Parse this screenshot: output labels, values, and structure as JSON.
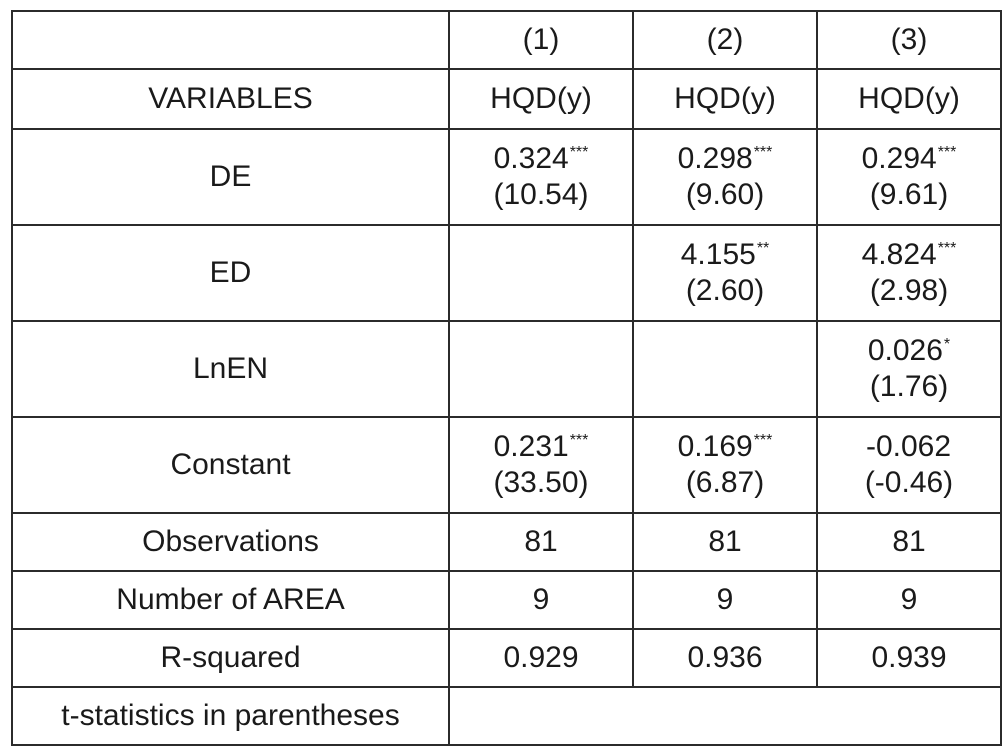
{
  "header": {
    "corner": "",
    "models": [
      "(1)",
      "(2)",
      "(3)"
    ]
  },
  "dep_row": {
    "label": "VARIABLES",
    "values": [
      "HQD(y)",
      "HQD(y)",
      "HQD(y)"
    ]
  },
  "rows": [
    {
      "label": "DE",
      "cells": [
        {
          "coef": "0.324",
          "stars": "***",
          "t": "(10.54)"
        },
        {
          "coef": "0.298",
          "stars": "***",
          "t": "(9.60)"
        },
        {
          "coef": "0.294",
          "stars": "***",
          "t": "(9.61)"
        }
      ]
    },
    {
      "label": "ED",
      "cells": [
        {
          "coef": "",
          "stars": "",
          "t": ""
        },
        {
          "coef": "4.155",
          "stars": "**",
          "t": "(2.60)"
        },
        {
          "coef": "4.824",
          "stars": "***",
          "t": "(2.98)"
        }
      ]
    },
    {
      "label": "LnEN",
      "cells": [
        {
          "coef": "",
          "stars": "",
          "t": ""
        },
        {
          "coef": "",
          "stars": "",
          "t": ""
        },
        {
          "coef": "0.026",
          "stars": "*",
          "t": "(1.76)"
        }
      ]
    },
    {
      "label": "Constant",
      "cells": [
        {
          "coef": "0.231",
          "stars": "***",
          "t": "(33.50)"
        },
        {
          "coef": "0.169",
          "stars": "***",
          "t": "(6.87)"
        },
        {
          "coef": "-0.062",
          "stars": "",
          "t": "(-0.46)"
        }
      ]
    }
  ],
  "stats": [
    {
      "label": "Observations",
      "values": [
        "81",
        "81",
        "81"
      ]
    },
    {
      "label": "Number of AREA",
      "values": [
        "9",
        "9",
        "9"
      ]
    },
    {
      "label": "R-squared",
      "values": [
        "0.929",
        "0.936",
        "0.939"
      ]
    }
  ],
  "note": "t-statistics in parentheses"
}
